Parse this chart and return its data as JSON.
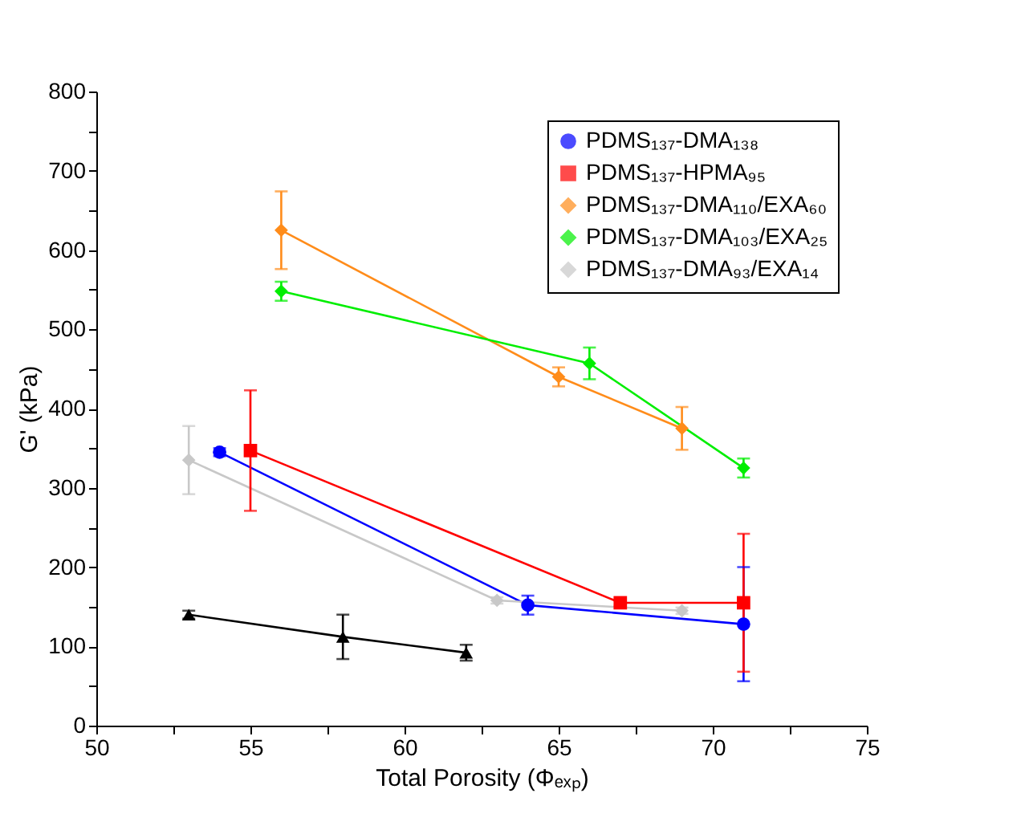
{
  "chart_data": {
    "type": "line",
    "xlabel": "Total Porosity (Φₑₓₚ)",
    "ylabel": "G' (kPa)",
    "xlim": [
      50,
      75
    ],
    "xticks": [
      50,
      {
        "value": 52.5,
        "label": null
      },
      55,
      {
        "value": 57.5,
        "label": null
      },
      60,
      {
        "value": 62.5,
        "label": null
      },
      65,
      {
        "value": 67.5,
        "label": null
      },
      70,
      {
        "value": 72.5,
        "label": null
      },
      75
    ],
    "ylim": [
      0,
      800
    ],
    "yticks": [
      0,
      {
        "value": 50,
        "label": null
      },
      100,
      {
        "value": 150,
        "label": null
      },
      200,
      {
        "value": 250,
        "label": null
      },
      300,
      {
        "value": 350,
        "label": null
      },
      400,
      {
        "value": 450,
        "label": null
      },
      500,
      {
        "value": 550,
        "label": null
      },
      600,
      {
        "value": 650,
        "label": null
      },
      700,
      {
        "value": 750,
        "label": null
      },
      800
    ],
    "grid": false,
    "legend": "top right",
    "series": [
      {
        "color": "#000000",
        "marker": "triangle",
        "x": [
          53,
          58,
          62
        ],
        "values": [
          140,
          112,
          92
        ],
        "errors": [
          5,
          28,
          10
        ]
      },
      {
        "name": "PDMS₁₃₇-DMA₁₃₈",
        "color": "#0000ff",
        "marker": "circle",
        "x": [
          54,
          64,
          71
        ],
        "values": [
          345,
          152,
          128
        ],
        "errors": [
          5,
          12,
          72
        ]
      },
      {
        "name": "PDMS₁₃₇-HPMA₉₅",
        "color": "#ff0000",
        "marker": "square",
        "x": [
          55,
          67,
          71
        ],
        "values": [
          347,
          155,
          155
        ],
        "errors": [
          76,
          4,
          87
        ]
      },
      {
        "name": "PDMS₁₃₇-DMA₁₁₀/EXA₆₀",
        "color": "#ff8c1a",
        "marker": "diamond",
        "x": [
          56,
          65,
          69
        ],
        "values": [
          625,
          440,
          375
        ],
        "errors": [
          49,
          12,
          27
        ]
      },
      {
        "name": "PDMS₁₃₇-DMA₁₀₃/EXA₂₅",
        "color": "#00ee00",
        "marker": "diamond",
        "x": [
          56,
          66,
          71
        ],
        "values": [
          548,
          457,
          325
        ],
        "errors": [
          12,
          20,
          12
        ]
      },
      {
        "name": "PDMS₁₃₇-DMA₉₃/EXA₁₄",
        "color": "#c8c8c8",
        "marker": "diamond",
        "x": [
          53,
          63,
          69
        ],
        "values": [
          335,
          158,
          145
        ],
        "errors": [
          43,
          4,
          4
        ]
      }
    ]
  }
}
